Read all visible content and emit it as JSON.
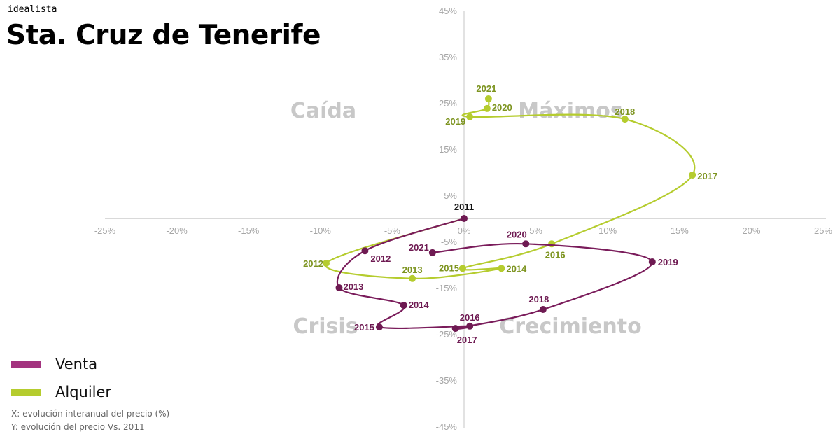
{
  "header": {
    "brand": "idealista",
    "title": "Sta. Cruz de Tenerife"
  },
  "legend": {
    "items": [
      {
        "label": "Venta",
        "color": "#a3337f"
      },
      {
        "label": "Alquiler",
        "color": "#b5cc2e"
      }
    ]
  },
  "notes": {
    "x_note": "X: evolución interanual del precio (%)",
    "y_note": "Y: evolución del precio Vs. 2011"
  },
  "quadrants": {
    "top_left": "Caída",
    "top_right": "Máximos",
    "bottom_left": "Crisis",
    "bottom_right": "Crecimiento"
  },
  "colors": {
    "venta_line": "#7a1c5b",
    "venta_label": "#6e1a52",
    "alquiler_line": "#b5cc2e",
    "alquiler_label": "#7d9420",
    "axis": "#d9d9d9",
    "tick_text": "#a6a6a6",
    "quadrant_text": "#c8c8c8"
  },
  "chart_data": {
    "type": "scatter",
    "title": "Sta. Cruz de Tenerife",
    "xlabel": "X: evolución interanual del precio (%)",
    "ylabel": "Y: evolución del precio Vs. 2011",
    "xlim": [
      -25,
      25
    ],
    "ylim": [
      -45,
      45
    ],
    "x_ticks": [
      "-25%",
      "-20%",
      "-15%",
      "-10%",
      "-5%",
      "0%",
      "5%",
      "10%",
      "15%",
      "20%",
      "25%"
    ],
    "y_ticks": [
      "45%",
      "35%",
      "25%",
      "15%",
      "5%",
      "-5%",
      "-15%",
      "-25%",
      "-35%",
      "-45%"
    ],
    "grid": false,
    "legend_position": "bottom-left",
    "connected": true,
    "series": [
      {
        "name": "Venta",
        "points": [
          {
            "label": "2011",
            "x": 0.0,
            "y": 0.0
          },
          {
            "label": "2012",
            "x": -6.9,
            "y": -7.0
          },
          {
            "label": "2013",
            "x": -8.7,
            "y": -15.0
          },
          {
            "label": "2014",
            "x": -4.2,
            "y": -18.8
          },
          {
            "label": "2015",
            "x": -5.9,
            "y": -23.5
          },
          {
            "label": "2016",
            "x": 0.4,
            "y": -23.3
          },
          {
            "label": "2017",
            "x": -0.6,
            "y": -23.8
          },
          {
            "label": "2018",
            "x": 5.5,
            "y": -19.7
          },
          {
            "label": "2019",
            "x": 13.1,
            "y": -9.4
          },
          {
            "label": "2020",
            "x": 4.3,
            "y": -5.5
          },
          {
            "label": "2021",
            "x": -2.2,
            "y": -7.4
          }
        ]
      },
      {
        "name": "Alquiler",
        "points": [
          {
            "label": "2011",
            "x": 0.0,
            "y": 0.0
          },
          {
            "label": "2012",
            "x": -9.6,
            "y": -9.7
          },
          {
            "label": "2013",
            "x": -3.6,
            "y": -13.0
          },
          {
            "label": "2014",
            "x": 2.6,
            "y": -10.8
          },
          {
            "label": "2015",
            "x": -0.1,
            "y": -10.8
          },
          {
            "label": "2016",
            "x": 6.1,
            "y": -5.5
          },
          {
            "label": "2017",
            "x": 15.9,
            "y": 9.4
          },
          {
            "label": "2018",
            "x": 11.2,
            "y": 21.5
          },
          {
            "label": "2019",
            "x": 0.4,
            "y": 22.0
          },
          {
            "label": "2020",
            "x": 1.6,
            "y": 23.8
          },
          {
            "label": "2021",
            "x": 1.7,
            "y": 25.9
          }
        ]
      }
    ]
  }
}
